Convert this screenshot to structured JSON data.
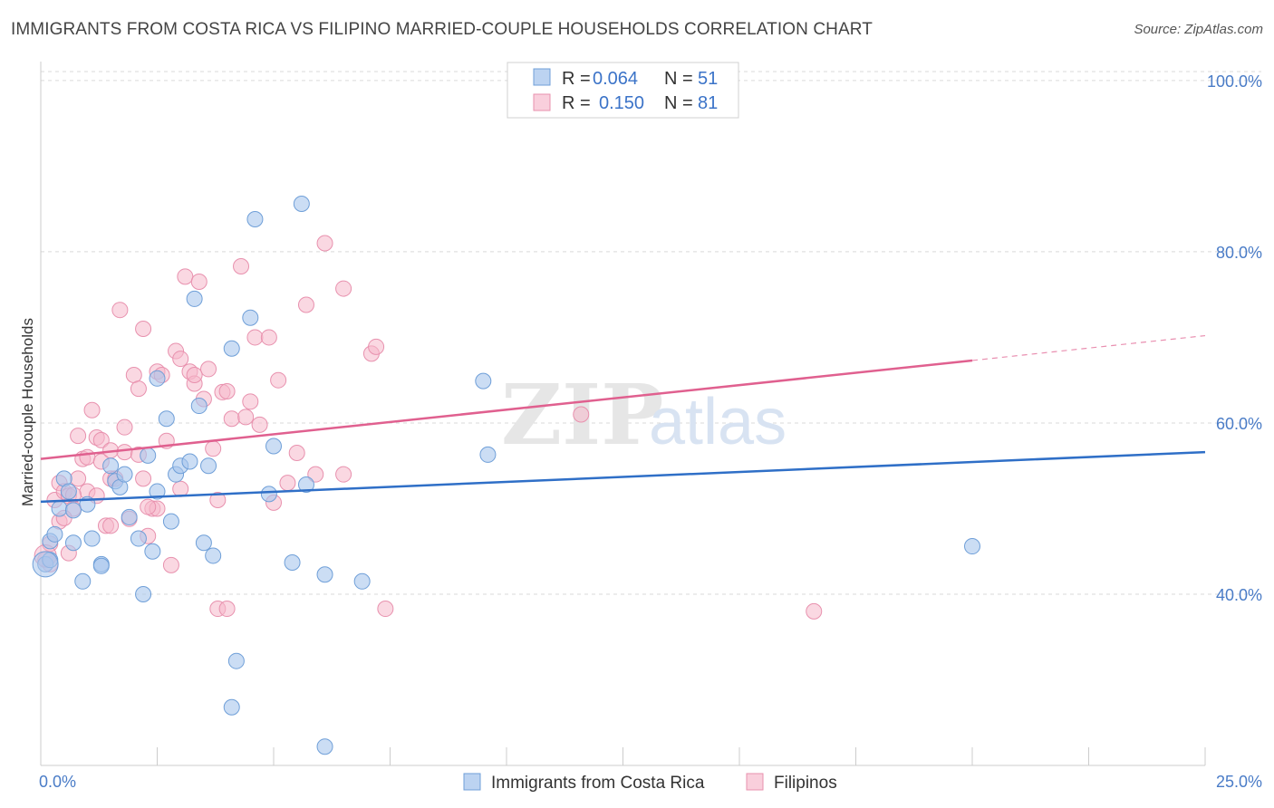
{
  "header": {
    "title": "IMMIGRANTS FROM COSTA RICA VS FILIPINO MARRIED-COUPLE HOUSEHOLDS CORRELATION CHART",
    "source": "Source: ZipAtlas.com"
  },
  "watermark": {
    "zip": "ZIP",
    "atlas": "atlas"
  },
  "colors": {
    "blue_fill": "#a9c6ec",
    "blue_stroke": "#6f9fd8",
    "blue_line": "#2f6fc7",
    "pink_fill": "#f5b8cb",
    "pink_stroke": "#e891ae",
    "pink_line": "#e0608f",
    "grid": "#d9d9d9",
    "axis_label": "#4a7cc7"
  },
  "legend": {
    "rows": [
      {
        "r_label": "R =",
        "r_value": "0.064",
        "n_label": "N =",
        "n_value": "51"
      },
      {
        "r_label": "R =",
        "r_value": "0.150",
        "n_label": "N =",
        "n_value": "81"
      }
    ]
  },
  "chart_data": {
    "type": "scatter",
    "title": "IMMIGRANTS FROM COSTA RICA VS FILIPINO MARRIED-COUPLE HOUSEHOLDS CORRELATION CHART",
    "xlabel": "",
    "ylabel": "Married-couple Households",
    "xlim": [
      0,
      25
    ],
    "ylim": [
      20,
      102
    ],
    "x_tick_labels": [
      "0.0%",
      "25.0%"
    ],
    "y_ticks": [
      40,
      60,
      80,
      100
    ],
    "y_tick_labels": [
      "40.0%",
      "60.0%",
      "80.0%",
      "100.0%"
    ],
    "grid": true,
    "legend_position": "top-center",
    "series": [
      {
        "name": "Immigrants from Costa Rica",
        "color": "blue",
        "trend": {
          "x": [
            0,
            25
          ],
          "y": [
            50.8,
            56.6
          ]
        },
        "points": [
          [
            0.1,
            43.5
          ],
          [
            0.2,
            46.2
          ],
          [
            0.3,
            47.0
          ],
          [
            0.4,
            50.0
          ],
          [
            0.5,
            53.5
          ],
          [
            0.6,
            52.0
          ],
          [
            0.7,
            49.8
          ],
          [
            0.7,
            46.0
          ],
          [
            0.9,
            41.5
          ],
          [
            1.1,
            46.5
          ],
          [
            1.3,
            43.5
          ],
          [
            1.5,
            55.0
          ],
          [
            1.6,
            53.2
          ],
          [
            1.7,
            52.5
          ],
          [
            1.8,
            54.0
          ],
          [
            1.9,
            49.0
          ],
          [
            2.1,
            46.5
          ],
          [
            2.2,
            40.0
          ],
          [
            2.3,
            56.2
          ],
          [
            2.4,
            45.0
          ],
          [
            2.5,
            52.0
          ],
          [
            2.5,
            65.2
          ],
          [
            2.7,
            60.5
          ],
          [
            2.8,
            48.5
          ],
          [
            2.9,
            54.0
          ],
          [
            3.0,
            55.0
          ],
          [
            3.2,
            55.5
          ],
          [
            3.3,
            74.5
          ],
          [
            3.4,
            62.0
          ],
          [
            3.5,
            46.0
          ],
          [
            3.6,
            55.0
          ],
          [
            3.7,
            44.5
          ],
          [
            4.1,
            68.7
          ],
          [
            4.2,
            32.2
          ],
          [
            4.1,
            26.8
          ],
          [
            4.5,
            72.3
          ],
          [
            4.6,
            83.8
          ],
          [
            4.9,
            51.7
          ],
          [
            5.0,
            57.3
          ],
          [
            5.4,
            43.7
          ],
          [
            5.6,
            85.6
          ],
          [
            5.7,
            52.8
          ],
          [
            6.1,
            42.3
          ],
          [
            6.1,
            22.2
          ],
          [
            6.9,
            41.5
          ],
          [
            9.5,
            64.9
          ],
          [
            9.6,
            56.3
          ],
          [
            20.0,
            45.6
          ],
          [
            1.3,
            43.3
          ],
          [
            0.2,
            44.0
          ],
          [
            1.0,
            50.5
          ]
        ]
      },
      {
        "name": "Filipinos",
        "color": "pink",
        "trend": {
          "x": [
            0,
            20
          ],
          "y": [
            55.8,
            67.3
          ]
        },
        "trend_dashed": {
          "x": [
            20,
            25
          ],
          "y": [
            67.3,
            70.2
          ]
        },
        "points": [
          [
            0.1,
            44.0
          ],
          [
            0.2,
            43.5
          ],
          [
            0.3,
            51.0
          ],
          [
            0.4,
            48.5
          ],
          [
            0.4,
            53.0
          ],
          [
            0.5,
            52.0
          ],
          [
            0.6,
            44.8
          ],
          [
            0.6,
            51.5
          ],
          [
            0.7,
            50.0
          ],
          [
            0.8,
            58.5
          ],
          [
            0.8,
            53.5
          ],
          [
            0.9,
            55.8
          ],
          [
            1.0,
            52.0
          ],
          [
            1.0,
            56.0
          ],
          [
            1.1,
            61.5
          ],
          [
            1.2,
            58.3
          ],
          [
            1.3,
            58.0
          ],
          [
            1.3,
            55.5
          ],
          [
            1.4,
            48.0
          ],
          [
            1.5,
            56.8
          ],
          [
            1.5,
            53.5
          ],
          [
            1.6,
            53.5
          ],
          [
            1.7,
            73.2
          ],
          [
            1.8,
            59.5
          ],
          [
            1.8,
            56.6
          ],
          [
            1.9,
            48.8
          ],
          [
            2.0,
            65.6
          ],
          [
            2.1,
            64.0
          ],
          [
            2.2,
            71.0
          ],
          [
            2.3,
            46.8
          ],
          [
            2.4,
            50.0
          ],
          [
            2.5,
            50.0
          ],
          [
            2.5,
            66.0
          ],
          [
            2.6,
            65.6
          ],
          [
            2.7,
            57.9
          ],
          [
            2.8,
            43.4
          ],
          [
            2.9,
            68.4
          ],
          [
            3.0,
            67.5
          ],
          [
            3.0,
            52.3
          ],
          [
            3.1,
            77.1
          ],
          [
            3.2,
            66.0
          ],
          [
            3.3,
            64.6
          ],
          [
            3.4,
            76.5
          ],
          [
            3.5,
            62.8
          ],
          [
            3.6,
            66.3
          ],
          [
            3.7,
            57.0
          ],
          [
            3.8,
            51.0
          ],
          [
            3.9,
            63.6
          ],
          [
            3.8,
            38.3
          ],
          [
            4.0,
            38.3
          ],
          [
            4.0,
            63.7
          ],
          [
            4.1,
            60.5
          ],
          [
            4.3,
            78.3
          ],
          [
            4.4,
            60.7
          ],
          [
            4.5,
            62.5
          ],
          [
            4.6,
            70.0
          ],
          [
            4.7,
            59.8
          ],
          [
            4.9,
            70.0
          ],
          [
            5.0,
            50.7
          ],
          [
            5.1,
            65.0
          ],
          [
            5.3,
            53.0
          ],
          [
            5.5,
            56.5
          ],
          [
            5.7,
            73.8
          ],
          [
            5.9,
            54.0
          ],
          [
            6.1,
            81.0
          ],
          [
            6.5,
            54.0
          ],
          [
            6.5,
            75.7
          ],
          [
            7.1,
            68.1
          ],
          [
            7.2,
            68.9
          ],
          [
            7.4,
            38.3
          ],
          [
            11.6,
            61.0
          ],
          [
            16.6,
            38.0
          ],
          [
            0.2,
            45.9
          ],
          [
            0.5,
            48.9
          ],
          [
            2.3,
            50.2
          ],
          [
            1.2,
            51.5
          ],
          [
            0.7,
            51.6
          ],
          [
            2.1,
            56.3
          ],
          [
            3.3,
            65.6
          ],
          [
            1.5,
            48.0
          ],
          [
            2.2,
            53.5
          ]
        ]
      }
    ]
  }
}
